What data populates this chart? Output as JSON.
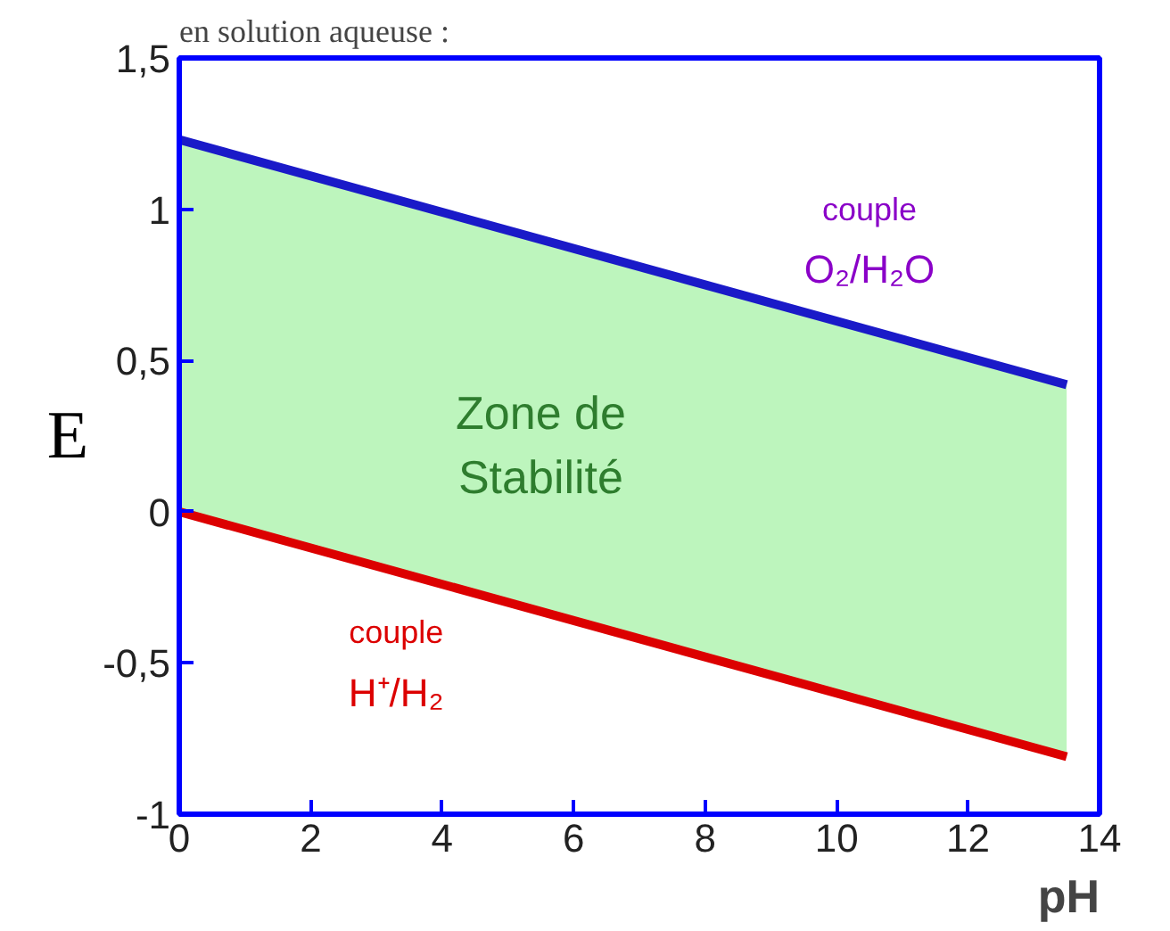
{
  "chart_data": {
    "type": "line",
    "title": "en solution aqueuse :",
    "xlabel": "pH",
    "ylabel": "E",
    "xlim": [
      0,
      14
    ],
    "ylim": [
      -1,
      1.5
    ],
    "xticks": [
      0,
      2,
      4,
      6,
      8,
      10,
      12,
      14
    ],
    "yticks": [
      {
        "value": -1,
        "label": "-1"
      },
      {
        "value": -0.5,
        "label": "-0,5"
      },
      {
        "value": 0,
        "label": "0"
      },
      {
        "value": 0.5,
        "label": "0,5"
      },
      {
        "value": 1,
        "label": "1"
      },
      {
        "value": 1.5,
        "label": "1,5"
      }
    ],
    "grid": false,
    "x": [
      0,
      13.5
    ],
    "series": [
      {
        "color": "#1a1ac8",
        "values": [
          1.23,
          0.42
        ],
        "lower": [
          0,
          -0.81
        ],
        "upper": [
          1.23,
          0.42
        ]
      },
      {
        "color": "#dc0000",
        "values": [
          0,
          -0.81
        ]
      }
    ],
    "annotations": [
      "couple",
      "O₂/H₂O",
      "Zone de\nStabilité",
      "couple",
      "H⁺/H₂"
    ]
  }
}
